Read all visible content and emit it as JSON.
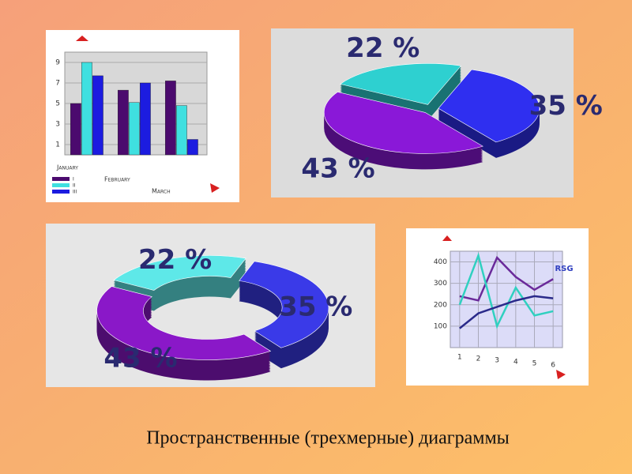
{
  "caption": "Пространственные (трехмерные) диаграммы",
  "chart_data": [
    {
      "type": "bar",
      "categories": [
        "January",
        "February",
        "March"
      ],
      "series": [
        {
          "name": "I",
          "color": "#4b0a6e",
          "values": [
            5,
            6.3,
            7.2
          ]
        },
        {
          "name": "II",
          "color": "#3fe0e0",
          "values": [
            9,
            5.1,
            4.8
          ]
        },
        {
          "name": "III",
          "color": "#1c1ce0",
          "values": [
            7.7,
            7,
            1.5
          ]
        }
      ],
      "ylim": [
        0,
        10
      ],
      "yticks": [
        1,
        3,
        5,
        7,
        9
      ],
      "grid": true
    },
    {
      "type": "pie",
      "values": [
        22,
        35,
        43
      ],
      "value_labels": [
        "22 %",
        "35 %",
        "43 %"
      ],
      "colors": [
        "#2ed0d0",
        "#2f2ff0",
        "#8a18d8"
      ]
    },
    {
      "type": "donut",
      "values": [
        22,
        35,
        43
      ],
      "value_labels": [
        "22 %",
        "35 %",
        "43 %"
      ],
      "colors": [
        "#5ee8e8",
        "#3a3ae8",
        "#8a18c8"
      ]
    },
    {
      "type": "line",
      "annotation": "RSG",
      "x": [
        1,
        2,
        3,
        4,
        5,
        6
      ],
      "series": [
        {
          "color": "#6a2a9a",
          "values": [
            240,
            220,
            420,
            330,
            270,
            320
          ]
        },
        {
          "color": "#30d0c0",
          "values": [
            200,
            430,
            100,
            280,
            150,
            170
          ]
        },
        {
          "color": "#2a2a8a",
          "values": [
            90,
            160,
            190,
            220,
            240,
            230
          ]
        }
      ],
      "xlim": [
        0.5,
        6.5
      ],
      "xticks": [
        1,
        2,
        3,
        4,
        5,
        6
      ],
      "ylim": [
        0,
        450
      ],
      "yticks": [
        100,
        200,
        300,
        400
      ],
      "grid": true
    }
  ]
}
